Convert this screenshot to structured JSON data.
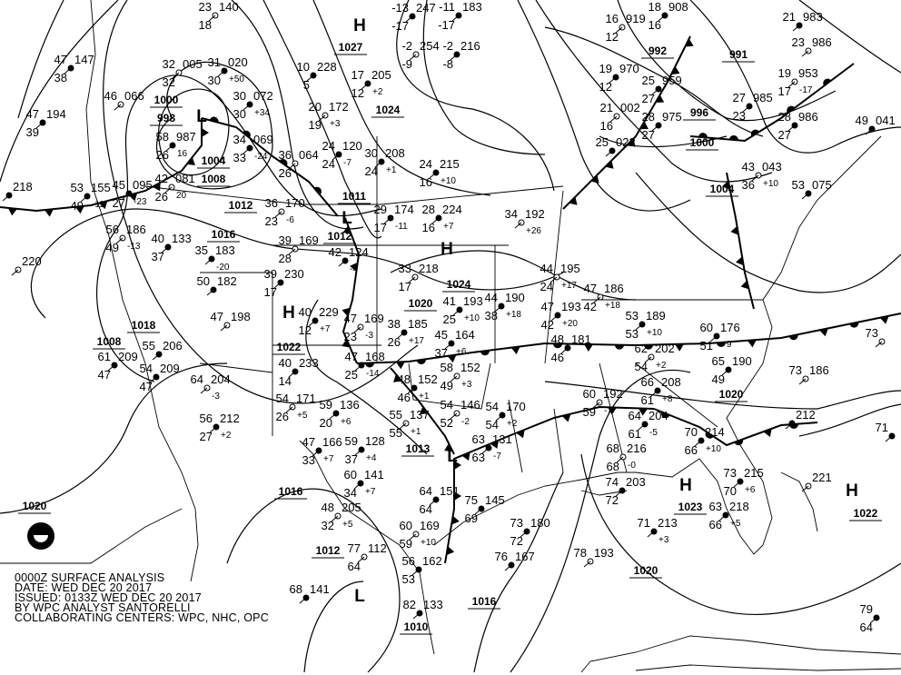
{
  "title_block": {
    "line1": "0000Z SURFACE ANALYSIS",
    "line2": "DATE: WED DEC 20 2017",
    "line3": "ISSUED: 0133Z WED DEC 20 2017",
    "line4": "BY WPC ANALYST SANTORELLI",
    "line5": "COLLABORATING CENTERS: WPC, NHC, OPC"
  },
  "logo": "NOAA",
  "pressure_centers": [
    {
      "type": "H"
    },
    {
      "type": "H"
    },
    {
      "type": "H"
    },
    {
      "type": "H"
    },
    {
      "type": "H"
    },
    {
      "type": "L"
    },
    {
      "type": "L"
    },
    {
      "type": "L"
    },
    {
      "type": "L"
    }
  ],
  "isobar_labels": [
    "1027",
    "1024",
    "1000",
    "998",
    "1004",
    "1008",
    "1012",
    "1011",
    "1012",
    "1016",
    "1018",
    "1022",
    "1020",
    "1024",
    "1013",
    "1016",
    "1012",
    "1010",
    "1016",
    "1020",
    "1023",
    "1022",
    "1020",
    "992",
    "991",
    "996",
    "1000",
    "1004",
    "1008",
    "1020"
  ],
  "stations": [
    {
      "t": "23",
      "p": "140",
      "d": "18",
      "tend": ""
    },
    {
      "t": "47",
      "p": "147",
      "d": "38",
      "tend": ""
    },
    {
      "t": "47",
      "p": "194",
      "d": "39",
      "tend": ""
    },
    {
      "t": "46",
      "p": "066",
      "d": "",
      "tend": ""
    },
    {
      "t": "31",
      "p": "020",
      "d": "30",
      "tend": "+50"
    },
    {
      "t": "30",
      "p": "072",
      "d": "30",
      "tend": "+34"
    },
    {
      "t": "32",
      "p": "005",
      "d": "32",
      "tend": ""
    },
    {
      "t": "58",
      "p": "987",
      "d": "26",
      "tend": "16"
    },
    {
      "t": "34",
      "p": "069",
      "d": "33",
      "tend": "-24"
    },
    {
      "t": "42",
      "p": "081",
      "d": "26",
      "tend": "20"
    },
    {
      "t": "45",
      "p": "095",
      "d": "27",
      "tend": "-23"
    },
    {
      "t": "53",
      "p": "155",
      "d": "49",
      "tend": "-11"
    },
    {
      "t": "36",
      "p": "064",
      "d": "26",
      "tend": ""
    },
    {
      "t": "24",
      "p": "120",
      "d": "24",
      "tend": "-7"
    },
    {
      "t": "30",
      "p": "208",
      "d": "24",
      "tend": "+1"
    },
    {
      "t": "20",
      "p": "172",
      "d": "19",
      "tend": "+3"
    },
    {
      "t": "17",
      "p": "205",
      "d": "12",
      "tend": "+2"
    },
    {
      "t": "10",
      "p": "228",
      "d": "5",
      "tend": ""
    },
    {
      "t": "36",
      "p": "170",
      "d": "23",
      "tend": "-6"
    },
    {
      "t": "42",
      "p": "124",
      "d": "",
      "tend": "-4"
    },
    {
      "t": "29",
      "p": "174",
      "d": "17",
      "tend": "-11"
    },
    {
      "t": "56",
      "p": "186",
      "d": "49",
      "tend": "-13"
    },
    {
      "t": "40",
      "p": "133",
      "d": "37",
      "tend": ""
    },
    {
      "t": "35",
      "p": "183",
      "d": "",
      "tend": "-20"
    },
    {
      "t": "39",
      "p": "169",
      "d": "28",
      "tend": ""
    },
    {
      "t": "50",
      "p": "182",
      "d": "",
      "tend": ""
    },
    {
      "t": "39",
      "p": "230",
      "d": "17",
      "tend": ""
    },
    {
      "t": "33",
      "p": "218",
      "d": "17",
      "tend": ""
    },
    {
      "t": "41",
      "p": "193",
      "d": "25",
      "tend": "+10"
    },
    {
      "t": "44",
      "p": "190",
      "d": "38",
      "tend": "+18"
    },
    {
      "t": "47",
      "p": "169",
      "d": "23",
      "tend": "-3"
    },
    {
      "t": "38",
      "p": "185",
      "d": "26",
      "tend": "+17"
    },
    {
      "t": "45",
      "p": "164",
      "d": "37",
      "tend": "+6"
    },
    {
      "t": "58",
      "p": "152",
      "d": "49",
      "tend": "+3"
    },
    {
      "t": "47",
      "p": "168",
      "d": "25",
      "tend": "-14"
    },
    {
      "t": "48",
      "p": "152",
      "d": "46",
      "tend": "+1"
    },
    {
      "t": "54",
      "p": "146",
      "d": "52",
      "tend": "-2"
    },
    {
      "t": "54",
      "p": "170",
      "d": "54",
      "tend": "+2"
    },
    {
      "t": "63",
      "p": "131",
      "d": "63",
      "tend": "-7"
    },
    {
      "t": "55",
      "p": "137",
      "d": "55",
      "tend": "+1"
    },
    {
      "t": "59",
      "p": "136",
      "d": "20",
      "tend": "+6"
    },
    {
      "t": "59",
      "p": "128",
      "d": "37",
      "tend": "+4"
    },
    {
      "t": "54",
      "p": "171",
      "d": "26",
      "tend": "+5"
    },
    {
      "t": "47",
      "p": "166",
      "d": "33",
      "tend": "+7"
    },
    {
      "t": "60",
      "p": "141",
      "d": "34",
      "tend": "+7"
    },
    {
      "t": "48",
      "p": "205",
      "d": "32",
      "tend": "+5"
    },
    {
      "t": "64",
      "p": "151",
      "d": "64",
      "tend": ""
    },
    {
      "t": "75",
      "p": "145",
      "d": "69",
      "tend": ""
    },
    {
      "t": "60",
      "p": "192",
      "d": "59",
      "tend": "-7"
    },
    {
      "t": "64",
      "p": "204",
      "d": "61",
      "tend": "-5"
    },
    {
      "t": "66",
      "p": "208",
      "d": "61",
      "tend": "+8"
    },
    {
      "t": "62",
      "p": "202",
      "d": "54",
      "tend": "+2"
    },
    {
      "t": "65",
      "p": "190",
      "d": "49",
      "tend": ""
    },
    {
      "t": "70",
      "p": "214",
      "d": "66",
      "tend": "+10"
    },
    {
      "t": "73",
      "p": "186",
      "d": "",
      "tend": ""
    },
    {
      "t": "73",
      "p": "215",
      "d": "70",
      "tend": "+6"
    },
    {
      "t": "63",
      "p": "218",
      "d": "66",
      "tend": "+5"
    },
    {
      "t": "",
      "p": "221",
      "d": "",
      "tend": ""
    },
    {
      "t": "53",
      "p": "189",
      "d": "53",
      "tend": "+10"
    },
    {
      "t": "60",
      "p": "176",
      "d": "51",
      "tend": "+9"
    },
    {
      "t": "47",
      "p": "186",
      "d": "42",
      "tend": "+18"
    },
    {
      "t": "47",
      "p": "193",
      "d": "42",
      "tend": "+20"
    },
    {
      "t": "48",
      "p": "181",
      "d": "46",
      "tend": ""
    },
    {
      "t": "44",
      "p": "195",
      "d": "24",
      "tend": "+17"
    },
    {
      "t": "49",
      "p": "041",
      "d": "",
      "tend": ""
    },
    {
      "t": "53",
      "p": "075",
      "d": "",
      "tend": ""
    },
    {
      "t": "43",
      "p": "043",
      "d": "36",
      "tend": "+10"
    },
    {
      "t": "27",
      "p": "985",
      "d": "23",
      "tend": ""
    },
    {
      "t": "28",
      "p": "986",
      "d": "27",
      "tend": ""
    },
    {
      "t": "19",
      "p": "953",
      "d": "17",
      "tend": "-17"
    },
    {
      "t": "25",
      "p": "959",
      "d": "27",
      "tend": ""
    },
    {
      "t": "28",
      "p": "975",
      "d": "27",
      "tend": ""
    },
    {
      "t": "21",
      "p": "002",
      "d": "16",
      "tend": ""
    },
    {
      "t": "25",
      "p": "022",
      "d": "",
      "tend": ""
    },
    {
      "t": "18",
      "p": "908",
      "d": "16",
      "tend": ""
    },
    {
      "t": "16",
      "p": "919",
      "d": "12",
      "tend": ""
    },
    {
      "t": "19",
      "p": "970",
      "d": "12",
      "tend": ""
    },
    {
      "t": "21",
      "p": "983",
      "d": "",
      "tend": ""
    },
    {
      "t": "23",
      "p": "986",
      "d": "",
      "tend": ""
    },
    {
      "t": "24",
      "p": "215",
      "d": "16",
      "tend": "+10"
    },
    {
      "t": "28",
      "p": "224",
      "d": "16",
      "tend": "+7"
    },
    {
      "t": "34",
      "p": "192",
      "d": "",
      "tend": "+26"
    },
    {
      "t": "61",
      "p": "209",
      "d": "47",
      "tend": ""
    },
    {
      "t": "55",
      "p": "206",
      "d": "",
      "tend": ""
    },
    {
      "t": "64",
      "p": "204",
      "d": "",
      "tend": "-3"
    },
    {
      "t": "56",
      "p": "212",
      "d": "27",
      "tend": "+2"
    },
    {
      "t": "54",
      "p": "209",
      "d": "47",
      "tend": ""
    },
    {
      "t": "47",
      "p": "198",
      "d": "",
      "tend": ""
    },
    {
      "t": "40",
      "p": "233",
      "d": "14",
      "tend": ""
    },
    {
      "t": "40",
      "p": "229",
      "d": "12",
      "tend": "+7"
    },
    {
      "t": "60",
      "p": "169",
      "d": "59",
      "tend": "+10"
    },
    {
      "t": "82",
      "p": "133",
      "d": "",
      "tend": ""
    },
    {
      "t": "68",
      "p": "141",
      "d": "",
      "tend": ""
    },
    {
      "t": "77",
      "p": "112",
      "d": "64",
      "tend": ""
    },
    {
      "t": "56",
      "p": "162",
      "d": "53",
      "tend": ""
    },
    {
      "t": "73",
      "p": "180",
      "d": "72",
      "tend": ""
    },
    {
      "t": "78",
      "p": "193",
      "d": "",
      "tend": ""
    },
    {
      "t": "76",
      "p": "167",
      "d": "",
      "tend": ""
    },
    {
      "t": "74",
      "p": "203",
      "d": "72",
      "tend": ""
    },
    {
      "t": "68",
      "p": "216",
      "d": "68",
      "tend": "-0"
    },
    {
      "t": "71",
      "p": "213",
      "d": "",
      "tend": "+3"
    },
    {
      "t": "-13",
      "p": "247",
      "d": "-17",
      "tend": ""
    },
    {
      "t": "-2",
      "p": "254",
      "d": "-9",
      "tend": ""
    },
    {
      "t": "-11",
      "p": "183",
      "d": "-17",
      "tend": ""
    },
    {
      "t": "-2",
      "p": "216",
      "d": "-8",
      "tend": ""
    },
    {
      "t": "",
      "p": "220",
      "d": "",
      "tend": ""
    },
    {
      "t": "",
      "p": "218",
      "d": "",
      "tend": ""
    },
    {
      "t": "",
      "p": "212",
      "d": "",
      "tend": ""
    },
    {
      "t": "73",
      "p": "",
      "d": "",
      "tend": ""
    },
    {
      "t": "71",
      "p": "",
      "d": "",
      "tend": ""
    },
    {
      "t": "79",
      "p": "",
      "d": "64",
      "tend": ""
    }
  ]
}
